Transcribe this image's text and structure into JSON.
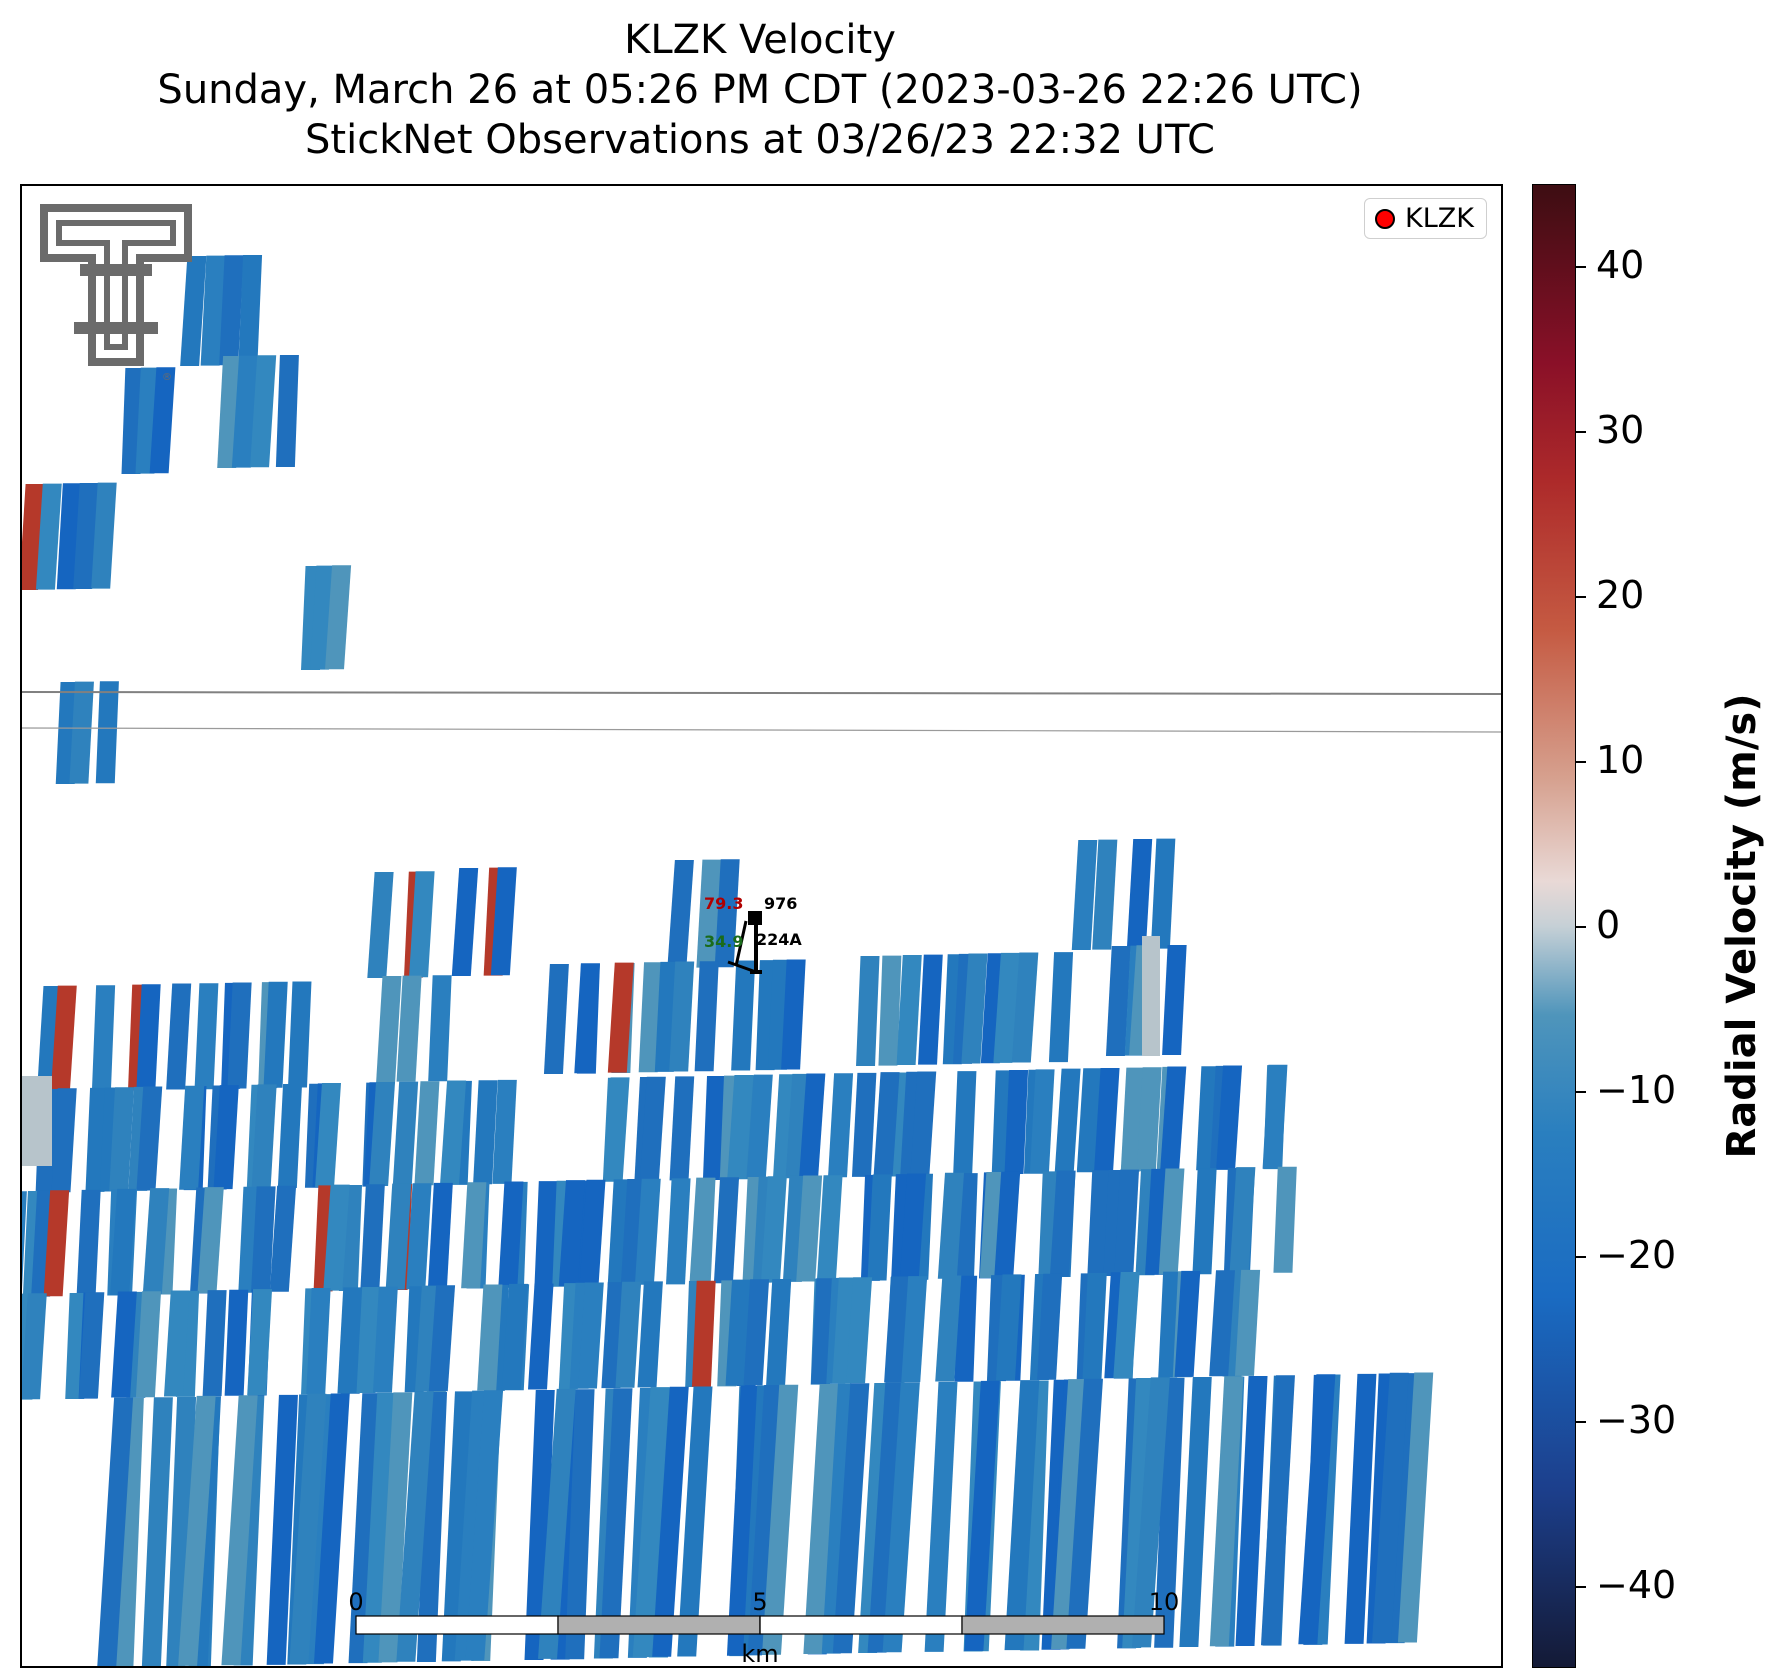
{
  "title": {
    "line1": "KLZK Velocity",
    "line2": "Sunday, March 26 at 05:26 PM CDT (2023-03-26 22:26 UTC)",
    "line3": "StickNet Observations at 03/26/23 22:32 UTC"
  },
  "legend": {
    "label": "KLZK",
    "marker_color": "#ff0000"
  },
  "station": {
    "temperature": "79.3",
    "pressure": "976",
    "dewpoint": "34.9",
    "id": "224A",
    "temperature_color": "#b00000",
    "dewpoint_color": "#1a6b1a"
  },
  "scale_bar": {
    "labels": [
      "0",
      "5",
      "10"
    ],
    "unit": "km",
    "fill_light": "#ffffff",
    "fill_dark": "#b0b0b0"
  },
  "logo": {
    "name": "Texas Tech Double T",
    "color": "#6b6b6b"
  },
  "colorbar": {
    "label": "Radial Velocity (m/s)",
    "range": [
      -45,
      45
    ],
    "ticks": [
      "40",
      "30",
      "20",
      "10",
      "0",
      "−10",
      "−20",
      "−30",
      "−40"
    ],
    "colors": [
      "#141a36",
      "#1a6bc2",
      "#2a7fbf",
      "#c6d0d6",
      "#c55a42",
      "#8a1028",
      "#3d0d12"
    ]
  },
  "chart_data": {
    "type": "heatmap",
    "title": "KLZK Velocity",
    "variable": "Radial Velocity (m/s)",
    "value_range": [
      -45,
      45
    ],
    "dominant_value": -24,
    "outbound_value": 28,
    "near_zero_value": -12,
    "map_overlays": [
      "county lines",
      "scale bar",
      "StickNet station plot"
    ]
  }
}
